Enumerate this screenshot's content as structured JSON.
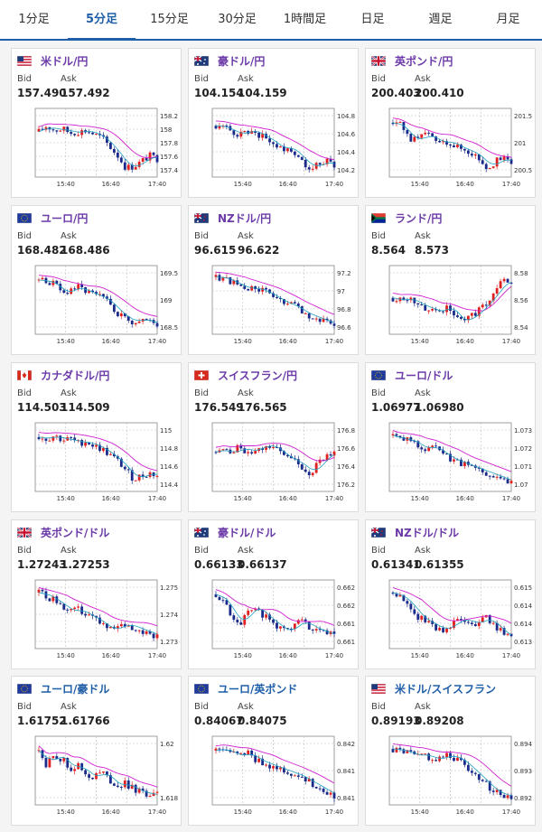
{
  "tabs": [
    "1分足",
    "5分足",
    "15分足",
    "30分足",
    "1時間足",
    "日足",
    "週足",
    "月足"
  ],
  "active_tab": 1,
  "labels": {
    "bid": "Bid",
    "ask": "Ask"
  },
  "cards": [
    {
      "pair": "米ドル/円",
      "flag": "us",
      "bid": "157.490",
      "ask": "157.492",
      "color": "#6b3aa8",
      "chart_data": {
        "type": "candlestick",
        "yticks": [
          "158.2",
          "158",
          "157.8",
          "157.6",
          "157.4"
        ],
        "xticks": [
          "15:40",
          "16:40",
          "17:40"
        ],
        "trend": [
          0.7,
          0.8,
          0.72,
          0.75,
          0.68,
          0.7,
          0.72,
          0.66,
          0.6,
          0.45,
          0.3,
          0.1,
          0.12,
          0.2,
          0.3,
          0.25
        ]
      }
    },
    {
      "pair": "豪ドル/円",
      "flag": "au",
      "bid": "104.154",
      "ask": "104.159",
      "color": "#6b3aa8",
      "chart_data": {
        "type": "candlestick",
        "yticks": [
          "104.8",
          "104.6",
          "104.4",
          "104.2"
        ],
        "xticks": [
          "15:40",
          "16:40",
          "17:40"
        ],
        "trend": [
          0.8,
          0.78,
          0.7,
          0.65,
          0.72,
          0.7,
          0.6,
          0.55,
          0.4,
          0.45,
          0.35,
          0.2,
          0.1,
          0.15,
          0.2,
          0.15
        ]
      }
    },
    {
      "pair": "英ポンド/円",
      "flag": "gb",
      "bid": "200.403",
      "ask": "200.410",
      "color": "#6b3aa8",
      "chart_data": {
        "type": "candlestick",
        "yticks": [
          "201.5",
          "201",
          "200.5"
        ],
        "xticks": [
          "15:40",
          "16:40",
          "17:40"
        ],
        "trend": [
          0.85,
          0.8,
          0.6,
          0.55,
          0.65,
          0.6,
          0.5,
          0.55,
          0.45,
          0.4,
          0.35,
          0.25,
          0.1,
          0.2,
          0.25,
          0.2
        ]
      }
    },
    {
      "pair": "ユーロ/円",
      "flag": "eu",
      "bid": "168.482",
      "ask": "168.486",
      "color": "#6b3aa8",
      "chart_data": {
        "type": "candlestick",
        "yticks": [
          "169.5",
          "169",
          "168.5"
        ],
        "xticks": [
          "15:40",
          "16:40",
          "17:40"
        ],
        "trend": [
          0.85,
          0.82,
          0.78,
          0.6,
          0.7,
          0.72,
          0.65,
          0.6,
          0.55,
          0.45,
          0.3,
          0.2,
          0.15,
          0.2,
          0.15,
          0.1
        ]
      }
    },
    {
      "pair": "NZドル/円",
      "flag": "nz",
      "bid": "96.615",
      "ask": "96.622",
      "color": "#6b3aa8",
      "chart_data": {
        "type": "candlestick",
        "yticks": [
          "97.2",
          "97",
          "96.8",
          "96.6"
        ],
        "xticks": [
          "15:40",
          "16:40",
          "17:40"
        ],
        "trend": [
          0.9,
          0.88,
          0.82,
          0.75,
          0.7,
          0.72,
          0.65,
          0.6,
          0.5,
          0.45,
          0.4,
          0.3,
          0.25,
          0.2,
          0.15,
          0.1
        ]
      }
    },
    {
      "pair": "ランド/円",
      "flag": "za",
      "bid": "8.564",
      "ask": "8.573",
      "color": "#6b3aa8",
      "chart_data": {
        "type": "candlestick",
        "yticks": [
          "8.58",
          "8.56",
          "8.54"
        ],
        "xticks": [
          "15:40",
          "16:40",
          "17:40"
        ],
        "trend": [
          0.55,
          0.5,
          0.55,
          0.45,
          0.4,
          0.35,
          0.3,
          0.45,
          0.2,
          0.15,
          0.25,
          0.35,
          0.5,
          0.65,
          0.85,
          0.8
        ]
      }
    },
    {
      "pair": "カナダドル/円",
      "flag": "ca",
      "bid": "114.503",
      "ask": "114.509",
      "color": "#6b3aa8",
      "chart_data": {
        "type": "candlestick",
        "yticks": [
          "115",
          "114.8",
          "114.6",
          "114.4"
        ],
        "xticks": [
          "15:40",
          "16:40",
          "17:40"
        ],
        "trend": [
          0.85,
          0.82,
          0.88,
          0.8,
          0.82,
          0.75,
          0.78,
          0.7,
          0.65,
          0.55,
          0.45,
          0.3,
          0.15,
          0.2,
          0.25,
          0.2
        ]
      }
    },
    {
      "pair": "スイスフラン/円",
      "flag": "ch",
      "bid": "176.549",
      "ask": "176.565",
      "color": "#6b3aa8",
      "chart_data": {
        "type": "candlestick",
        "yticks": [
          "176.8",
          "176.6",
          "176.4",
          "176.2"
        ],
        "xticks": [
          "15:40",
          "16:40",
          "17:40"
        ],
        "trend": [
          0.6,
          0.65,
          0.55,
          0.7,
          0.6,
          0.65,
          0.7,
          0.72,
          0.6,
          0.5,
          0.45,
          0.35,
          0.25,
          0.4,
          0.55,
          0.6
        ]
      }
    },
    {
      "pair": "ユーロ/ドル",
      "flag": "eu",
      "bid": "1.06977",
      "ask": "1.06980",
      "color": "#6b3aa8",
      "chart_data": {
        "type": "candlestick",
        "yticks": [
          "1.073",
          "1.072",
          "1.071",
          "1.07"
        ],
        "xticks": [
          "15:40",
          "16:40",
          "17:40"
        ],
        "trend": [
          0.88,
          0.8,
          0.82,
          0.72,
          0.65,
          0.7,
          0.6,
          0.5,
          0.45,
          0.4,
          0.35,
          0.3,
          0.25,
          0.2,
          0.15,
          0.1
        ]
      }
    },
    {
      "pair": "英ポンド/ドル",
      "flag": "gb",
      "bid": "1.27243",
      "ask": "1.27253",
      "color": "#6b3aa8",
      "chart_data": {
        "type": "candlestick",
        "yticks": [
          "1.275",
          "1.274",
          "1.273"
        ],
        "xticks": [
          "15:40",
          "16:40",
          "17:40"
        ],
        "trend": [
          0.88,
          0.82,
          0.75,
          0.65,
          0.55,
          0.6,
          0.5,
          0.45,
          0.35,
          0.25,
          0.3,
          0.35,
          0.3,
          0.25,
          0.2,
          0.15
        ]
      }
    },
    {
      "pair": "豪ドル/ドル",
      "flag": "au",
      "bid": "0.66133",
      "ask": "0.66137",
      "color": "#6b3aa8",
      "chart_data": {
        "type": "candlestick",
        "yticks": [
          "0.6625",
          "0.662",
          "0.6615",
          "0.661"
        ],
        "xticks": [
          "15:40",
          "16:40",
          "17:40"
        ],
        "trend": [
          0.85,
          0.75,
          0.5,
          0.35,
          0.55,
          0.65,
          0.5,
          0.4,
          0.3,
          0.2,
          0.35,
          0.4,
          0.3,
          0.25,
          0.2,
          0.15
        ]
      }
    },
    {
      "pair": "NZドル/ドル",
      "flag": "nz",
      "bid": "0.61341",
      "ask": "0.61355",
      "color": "#6b3aa8",
      "chart_data": {
        "type": "candlestick",
        "yticks": [
          "0.615",
          "0.6145",
          "0.614",
          "0.6135"
        ],
        "xticks": [
          "15:40",
          "16:40",
          "17:40"
        ],
        "trend": [
          0.88,
          0.8,
          0.7,
          0.5,
          0.4,
          0.35,
          0.25,
          0.3,
          0.4,
          0.45,
          0.35,
          0.4,
          0.45,
          0.3,
          0.2,
          0.1
        ]
      }
    },
    {
      "pair": "ユーロ/豪ドル",
      "flag": "eu",
      "bid": "1.61752",
      "ask": "1.61766",
      "color": "#1f5ea8",
      "chart_data": {
        "type": "candlestick",
        "yticks": [
          "1.62",
          "1.618"
        ],
        "xticks": [
          "15:40",
          "16:40",
          "17:40"
        ],
        "trend": [
          0.85,
          0.6,
          0.8,
          0.7,
          0.55,
          0.6,
          0.45,
          0.4,
          0.5,
          0.35,
          0.25,
          0.3,
          0.2,
          0.15,
          0.12,
          0.1
        ]
      }
    },
    {
      "pair": "ユーロ/英ポンド",
      "flag": "eu",
      "bid": "0.84067",
      "ask": "0.84075",
      "color": "#1f5ea8",
      "chart_data": {
        "type": "candlestick",
        "yticks": [
          "0.842",
          "0.8415",
          "0.841"
        ],
        "xticks": [
          "15:40",
          "16:40",
          "17:40"
        ],
        "trend": [
          0.85,
          0.88,
          0.8,
          0.75,
          0.82,
          0.7,
          0.65,
          0.6,
          0.55,
          0.5,
          0.45,
          0.4,
          0.3,
          0.25,
          0.15,
          0.1
        ]
      }
    },
    {
      "pair": "米ドル/スイスフラン",
      "flag": "us",
      "bid": "0.89193",
      "ask": "0.89208",
      "color": "#1f5ea8",
      "chart_data": {
        "type": "candlestick",
        "yticks": [
          "0.894",
          "0.893",
          "0.892"
        ],
        "xticks": [
          "15:40",
          "16:40",
          "17:40"
        ],
        "trend": [
          0.88,
          0.85,
          0.82,
          0.75,
          0.8,
          0.7,
          0.72,
          0.78,
          0.72,
          0.65,
          0.5,
          0.4,
          0.25,
          0.15,
          0.1,
          0.08
        ]
      }
    }
  ]
}
